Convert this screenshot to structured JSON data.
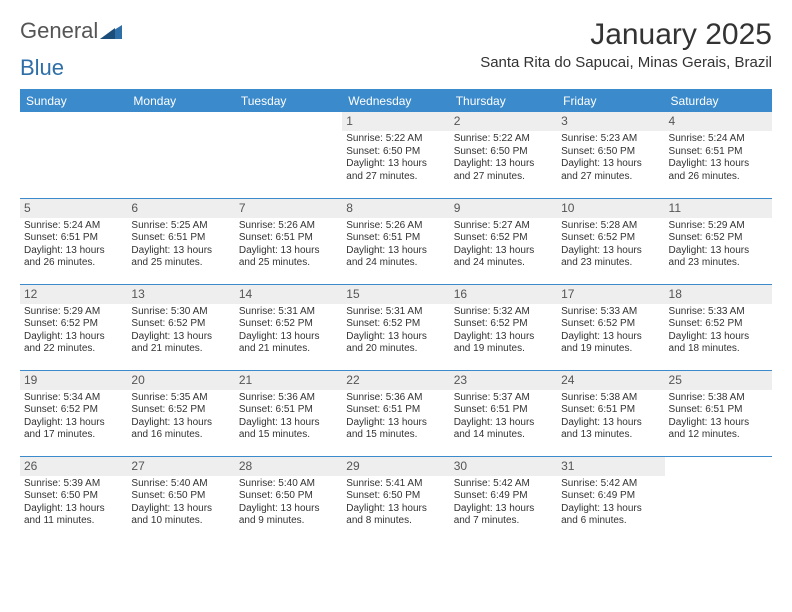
{
  "brand": {
    "part1": "General",
    "part2": "Blue"
  },
  "title": "January 2025",
  "location": "Santa Rita do Sapucai, Minas Gerais, Brazil",
  "colors": {
    "header_bg": "#3b8acb",
    "header_fg": "#ffffff",
    "daynum_bg": "#eeeeee",
    "rule": "#3b8acb",
    "logo_blue": "#2f6fa8"
  },
  "weekdays": [
    "Sunday",
    "Monday",
    "Tuesday",
    "Wednesday",
    "Thursday",
    "Friday",
    "Saturday"
  ],
  "weeks": [
    [
      {
        "n": "",
        "sr": "",
        "ss": "",
        "dl": ""
      },
      {
        "n": "",
        "sr": "",
        "ss": "",
        "dl": ""
      },
      {
        "n": "",
        "sr": "",
        "ss": "",
        "dl": ""
      },
      {
        "n": "1",
        "sr": "Sunrise: 5:22 AM",
        "ss": "Sunset: 6:50 PM",
        "dl": "Daylight: 13 hours and 27 minutes."
      },
      {
        "n": "2",
        "sr": "Sunrise: 5:22 AM",
        "ss": "Sunset: 6:50 PM",
        "dl": "Daylight: 13 hours and 27 minutes."
      },
      {
        "n": "3",
        "sr": "Sunrise: 5:23 AM",
        "ss": "Sunset: 6:50 PM",
        "dl": "Daylight: 13 hours and 27 minutes."
      },
      {
        "n": "4",
        "sr": "Sunrise: 5:24 AM",
        "ss": "Sunset: 6:51 PM",
        "dl": "Daylight: 13 hours and 26 minutes."
      }
    ],
    [
      {
        "n": "5",
        "sr": "Sunrise: 5:24 AM",
        "ss": "Sunset: 6:51 PM",
        "dl": "Daylight: 13 hours and 26 minutes."
      },
      {
        "n": "6",
        "sr": "Sunrise: 5:25 AM",
        "ss": "Sunset: 6:51 PM",
        "dl": "Daylight: 13 hours and 25 minutes."
      },
      {
        "n": "7",
        "sr": "Sunrise: 5:26 AM",
        "ss": "Sunset: 6:51 PM",
        "dl": "Daylight: 13 hours and 25 minutes."
      },
      {
        "n": "8",
        "sr": "Sunrise: 5:26 AM",
        "ss": "Sunset: 6:51 PM",
        "dl": "Daylight: 13 hours and 24 minutes."
      },
      {
        "n": "9",
        "sr": "Sunrise: 5:27 AM",
        "ss": "Sunset: 6:52 PM",
        "dl": "Daylight: 13 hours and 24 minutes."
      },
      {
        "n": "10",
        "sr": "Sunrise: 5:28 AM",
        "ss": "Sunset: 6:52 PM",
        "dl": "Daylight: 13 hours and 23 minutes."
      },
      {
        "n": "11",
        "sr": "Sunrise: 5:29 AM",
        "ss": "Sunset: 6:52 PM",
        "dl": "Daylight: 13 hours and 23 minutes."
      }
    ],
    [
      {
        "n": "12",
        "sr": "Sunrise: 5:29 AM",
        "ss": "Sunset: 6:52 PM",
        "dl": "Daylight: 13 hours and 22 minutes."
      },
      {
        "n": "13",
        "sr": "Sunrise: 5:30 AM",
        "ss": "Sunset: 6:52 PM",
        "dl": "Daylight: 13 hours and 21 minutes."
      },
      {
        "n": "14",
        "sr": "Sunrise: 5:31 AM",
        "ss": "Sunset: 6:52 PM",
        "dl": "Daylight: 13 hours and 21 minutes."
      },
      {
        "n": "15",
        "sr": "Sunrise: 5:31 AM",
        "ss": "Sunset: 6:52 PM",
        "dl": "Daylight: 13 hours and 20 minutes."
      },
      {
        "n": "16",
        "sr": "Sunrise: 5:32 AM",
        "ss": "Sunset: 6:52 PM",
        "dl": "Daylight: 13 hours and 19 minutes."
      },
      {
        "n": "17",
        "sr": "Sunrise: 5:33 AM",
        "ss": "Sunset: 6:52 PM",
        "dl": "Daylight: 13 hours and 19 minutes."
      },
      {
        "n": "18",
        "sr": "Sunrise: 5:33 AM",
        "ss": "Sunset: 6:52 PM",
        "dl": "Daylight: 13 hours and 18 minutes."
      }
    ],
    [
      {
        "n": "19",
        "sr": "Sunrise: 5:34 AM",
        "ss": "Sunset: 6:52 PM",
        "dl": "Daylight: 13 hours and 17 minutes."
      },
      {
        "n": "20",
        "sr": "Sunrise: 5:35 AM",
        "ss": "Sunset: 6:52 PM",
        "dl": "Daylight: 13 hours and 16 minutes."
      },
      {
        "n": "21",
        "sr": "Sunrise: 5:36 AM",
        "ss": "Sunset: 6:51 PM",
        "dl": "Daylight: 13 hours and 15 minutes."
      },
      {
        "n": "22",
        "sr": "Sunrise: 5:36 AM",
        "ss": "Sunset: 6:51 PM",
        "dl": "Daylight: 13 hours and 15 minutes."
      },
      {
        "n": "23",
        "sr": "Sunrise: 5:37 AM",
        "ss": "Sunset: 6:51 PM",
        "dl": "Daylight: 13 hours and 14 minutes."
      },
      {
        "n": "24",
        "sr": "Sunrise: 5:38 AM",
        "ss": "Sunset: 6:51 PM",
        "dl": "Daylight: 13 hours and 13 minutes."
      },
      {
        "n": "25",
        "sr": "Sunrise: 5:38 AM",
        "ss": "Sunset: 6:51 PM",
        "dl": "Daylight: 13 hours and 12 minutes."
      }
    ],
    [
      {
        "n": "26",
        "sr": "Sunrise: 5:39 AM",
        "ss": "Sunset: 6:50 PM",
        "dl": "Daylight: 13 hours and 11 minutes."
      },
      {
        "n": "27",
        "sr": "Sunrise: 5:40 AM",
        "ss": "Sunset: 6:50 PM",
        "dl": "Daylight: 13 hours and 10 minutes."
      },
      {
        "n": "28",
        "sr": "Sunrise: 5:40 AM",
        "ss": "Sunset: 6:50 PM",
        "dl": "Daylight: 13 hours and 9 minutes."
      },
      {
        "n": "29",
        "sr": "Sunrise: 5:41 AM",
        "ss": "Sunset: 6:50 PM",
        "dl": "Daylight: 13 hours and 8 minutes."
      },
      {
        "n": "30",
        "sr": "Sunrise: 5:42 AM",
        "ss": "Sunset: 6:49 PM",
        "dl": "Daylight: 13 hours and 7 minutes."
      },
      {
        "n": "31",
        "sr": "Sunrise: 5:42 AM",
        "ss": "Sunset: 6:49 PM",
        "dl": "Daylight: 13 hours and 6 minutes."
      },
      {
        "n": "",
        "sr": "",
        "ss": "",
        "dl": ""
      }
    ]
  ]
}
